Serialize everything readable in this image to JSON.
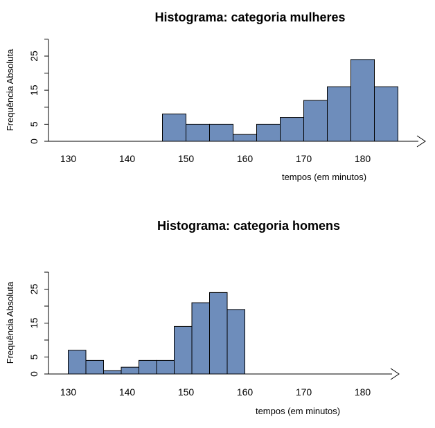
{
  "colors": {
    "bar_fill": "#6E8DBB",
    "bar_stroke": "#000000",
    "axis": "#000000"
  },
  "chart_data": [
    {
      "type": "bar",
      "title": "Histograma: categoria mulheres",
      "xlabel": "tempos (em minutos)",
      "ylabel": "Frequência Absoluta",
      "xlim": [
        130,
        185
      ],
      "ylim": [
        0,
        30
      ],
      "x_ticks": [
        "130",
        "140",
        "150",
        "160",
        "170",
        "180"
      ],
      "y_ticks": [
        "0",
        "5",
        "15",
        "25"
      ],
      "bins": [
        {
          "start": 146,
          "end": 150,
          "count": 8
        },
        {
          "start": 150,
          "end": 154,
          "count": 5
        },
        {
          "start": 154,
          "end": 158,
          "count": 5
        },
        {
          "start": 158,
          "end": 162,
          "count": 2
        },
        {
          "start": 162,
          "end": 166,
          "count": 5
        },
        {
          "start": 166,
          "end": 170,
          "count": 7
        },
        {
          "start": 170,
          "end": 174,
          "count": 12
        },
        {
          "start": 174,
          "end": 178,
          "count": 16
        },
        {
          "start": 178,
          "end": 182,
          "count": 24
        },
        {
          "start": 182,
          "end": 186,
          "count": 16
        }
      ]
    },
    {
      "type": "bar",
      "title": "Histograma: categoria homens",
      "xlabel": "tempos (em minutos)",
      "ylabel": "Frequência Absoluta",
      "xlim": [
        130,
        185
      ],
      "ylim": [
        0,
        30
      ],
      "x_ticks": [
        "130",
        "140",
        "150",
        "160",
        "170",
        "180"
      ],
      "y_ticks": [
        "0",
        "5",
        "15",
        "25"
      ],
      "bins": [
        {
          "start": 130,
          "end": 133,
          "count": 7
        },
        {
          "start": 133,
          "end": 136,
          "count": 4
        },
        {
          "start": 136,
          "end": 139,
          "count": 1
        },
        {
          "start": 139,
          "end": 142,
          "count": 2
        },
        {
          "start": 142,
          "end": 145,
          "count": 4
        },
        {
          "start": 145,
          "end": 148,
          "count": 4
        },
        {
          "start": 148,
          "end": 151,
          "count": 14
        },
        {
          "start": 151,
          "end": 154,
          "count": 21
        },
        {
          "start": 154,
          "end": 157,
          "count": 24
        },
        {
          "start": 157,
          "end": 160,
          "count": 19
        }
      ]
    }
  ]
}
